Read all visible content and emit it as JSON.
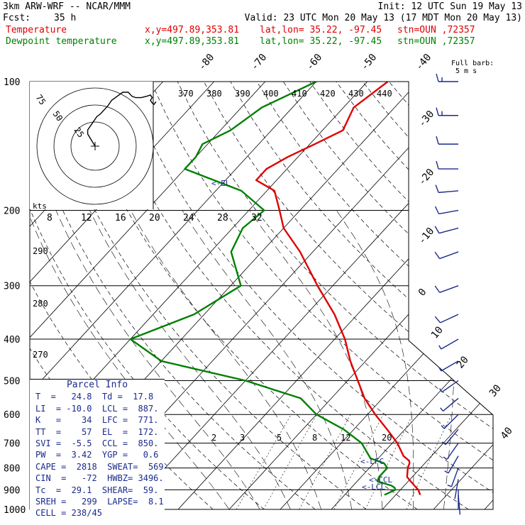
{
  "header": {
    "model": "3km ARW-WRF -- NCAR/MMM",
    "init": "Init: 12 UTC Sun 19 May 13",
    "fcst_label": "Fcst:",
    "fcst_value": "35 h",
    "valid": "Valid: 23 UTC Mon 20 May 13 (17 MDT Mon 20 May 13)",
    "temp_label": "Temperature",
    "temp_xy": "x,y=497.89,353.81",
    "temp_latlon": "lat,lon= 35.22, -97.45",
    "temp_stn": "stn=OUN ,72357",
    "dew_label": "Dewpoint temperature",
    "dew_xy": "x,y=497.89,353.81",
    "dew_latlon": "lat,lon= 35.22, -97.45",
    "dew_stn": "stn=OUN ,72357",
    "full_barb_1": "Full barb:",
    "full_barb_2": "5 m s",
    "colors": {
      "temperature": "#e00000",
      "dewpoint": "#008000",
      "info": "#1a2a8c"
    }
  },
  "parcel_info": {
    "title": "Parcel Info",
    "rows": [
      "T  =   24.8  Td =  17.8",
      "LI  = -10.0  LCL =  887.",
      "K   =    34  LFC =  771.",
      "TT  =    57  EL  =  172.",
      "SVI =  -5.5  CCL =  850.",
      "PW  =  3.42  YGP =   0.6",
      "CAPE =  2818  SWEAT=  569",
      "CIN  =   -72  HWBZ= 3496.",
      "Tc  =  29.1  SHEAR=  59.",
      "SREH =   299  LAPSE=  8.1",
      "CELL = 238/45"
    ]
  },
  "chart_data": {
    "type": "line",
    "diagram": "skew-T log-P",
    "pressure_levels": [
      100,
      200,
      300,
      400,
      500,
      600,
      700,
      800,
      900,
      1000
    ],
    "pressure_ylim": [
      1000,
      100
    ],
    "isotherm_labels": [
      40,
      30,
      20,
      10,
      0,
      -10,
      -20,
      -30,
      -40,
      -50,
      -60,
      -70,
      -80
    ],
    "theta_labels": [
      370,
      380,
      390,
      400,
      410,
      420,
      430,
      440
    ],
    "theta_left_labels": [
      290,
      280,
      270
    ],
    "mixing_ratio_labels": [
      2,
      3,
      5,
      8,
      12,
      20
    ],
    "hodo_kts_label": "kts",
    "hodo_speed_labels": [
      8,
      12,
      16,
      20,
      24,
      28,
      32
    ],
    "hodo_ring_labels": [
      25,
      50,
      75
    ],
    "level_markers": [
      "<-EL",
      "<-LFC",
      "<-CCL",
      "<-LCL"
    ],
    "series": [
      {
        "name": "Temperature",
        "color": "#e00000",
        "pressure": [
          925,
          900,
          880,
          860,
          840,
          800,
          780,
          770,
          750,
          700,
          650,
          600,
          550,
          500,
          450,
          400,
          350,
          300,
          250,
          220,
          200,
          180,
          170,
          160,
          150,
          140,
          130,
          115,
          100
        ],
        "temperature": [
          24.8,
          23.5,
          22.0,
          20.5,
          19.0,
          17.5,
          17.0,
          16.5,
          14.5,
          11.0,
          6.5,
          1.5,
          -3.5,
          -8.0,
          -13.0,
          -18.0,
          -24.5,
          -33.0,
          -42.5,
          -50.0,
          -54.0,
          -58.5,
          -64.0,
          -64.0,
          -62.0,
          -59.0,
          -56.0,
          -58.0,
          -56.0
        ]
      },
      {
        "name": "Dewpoint temperature",
        "color": "#008000",
        "pressure": [
          925,
          910,
          900,
          890,
          880,
          860,
          840,
          800,
          780,
          760,
          700,
          650,
          600,
          550,
          500,
          450,
          400,
          350,
          300,
          250,
          220,
          200,
          180,
          160,
          150,
          140,
          130,
          115,
          100
        ],
        "temperature": [
          17.8,
          18.5,
          19.0,
          18.5,
          17.5,
          14.0,
          13.5,
          13.5,
          12.0,
          8.5,
          4.0,
          -2.0,
          -10.0,
          -16.0,
          -30.0,
          -50.0,
          -60.0,
          -52.0,
          -48.0,
          -56.0,
          -58.0,
          -57.0,
          -65.0,
          -80.0,
          -80.0,
          -81.0,
          -78.0,
          -76.0,
          -70.0
        ]
      }
    ],
    "hodograph_kts": [
      [
        0,
        0
      ],
      [
        -4,
        9
      ],
      [
        -4,
        12
      ],
      [
        -1,
        18
      ],
      [
        1,
        22
      ],
      [
        3,
        24
      ],
      [
        5,
        27
      ],
      [
        7,
        30
      ],
      [
        9,
        34
      ],
      [
        12,
        37
      ],
      [
        15,
        40
      ],
      [
        18,
        40
      ],
      [
        20,
        37
      ],
      [
        22,
        36
      ],
      [
        25,
        36
      ],
      [
        28,
        37
      ],
      [
        30,
        38
      ],
      [
        31,
        36
      ],
      [
        30,
        34
      ],
      [
        31,
        32
      ],
      [
        32,
        31
      ],
      [
        33,
        33
      ]
    ],
    "wind_barbs": [
      {
        "p": 100,
        "dir": 270,
        "spd": 45
      },
      {
        "p": 120,
        "dir": 270,
        "spd": 45
      },
      {
        "p": 140,
        "dir": 270,
        "spd": 40
      },
      {
        "p": 160,
        "dir": 270,
        "spd": 35
      },
      {
        "p": 180,
        "dir": 265,
        "spd": 40
      },
      {
        "p": 200,
        "dir": 260,
        "spd": 40
      },
      {
        "p": 220,
        "dir": 255,
        "spd": 35
      },
      {
        "p": 250,
        "dir": 250,
        "spd": 30
      },
      {
        "p": 300,
        "dir": 250,
        "spd": 30
      },
      {
        "p": 350,
        "dir": 245,
        "spd": 30
      },
      {
        "p": 400,
        "dir": 240,
        "spd": 25
      },
      {
        "p": 450,
        "dir": 240,
        "spd": 25
      },
      {
        "p": 500,
        "dir": 235,
        "spd": 25
      },
      {
        "p": 550,
        "dir": 230,
        "spd": 20
      },
      {
        "p": 600,
        "dir": 225,
        "spd": 20
      },
      {
        "p": 650,
        "dir": 220,
        "spd": 20
      },
      {
        "p": 700,
        "dir": 215,
        "spd": 15
      },
      {
        "p": 750,
        "dir": 210,
        "spd": 15
      },
      {
        "p": 800,
        "dir": 200,
        "spd": 15
      },
      {
        "p": 850,
        "dir": 190,
        "spd": 10
      },
      {
        "p": 900,
        "dir": 180,
        "spd": 10
      },
      {
        "p": 925,
        "dir": 175,
        "spd": 10
      }
    ]
  }
}
